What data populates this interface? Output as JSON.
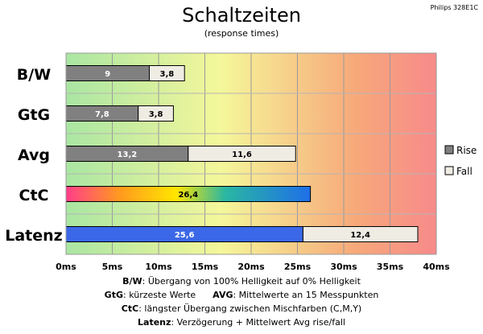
{
  "title": "Schaltzeiten",
  "subtitle": "(response times)",
  "model": "Philips 328E1C",
  "chart_data": {
    "type": "bar",
    "orientation": "horizontal",
    "stacked": true,
    "categories": [
      "B/W",
      "GtG",
      "Avg",
      "CtC",
      "Latenz"
    ],
    "series": [
      {
        "name": "Rise",
        "values": [
          9,
          7.8,
          13.2,
          26.4,
          25.6
        ],
        "labels": [
          "9",
          "7,8",
          "13,2",
          "26,4",
          "25,6"
        ]
      },
      {
        "name": "Fall",
        "values": [
          3.8,
          3.8,
          11.6,
          null,
          12.4
        ],
        "labels": [
          "3,8",
          "3,8",
          "11,6",
          "",
          "12,4"
        ]
      }
    ],
    "xlim": [
      0,
      40
    ],
    "xticks": [
      "0ms",
      "5ms",
      "10ms",
      "15ms",
      "20ms",
      "25ms",
      "30ms",
      "35ms",
      "40ms"
    ],
    "background_gradient": [
      "#a9e6a3",
      "#f5f79a",
      "#f7a97a",
      "#f78a8a"
    ],
    "colors": {
      "Rise": "#808080",
      "Fall": "#efece4",
      "CtC": "gradient",
      "Latenz": "#3b68e8"
    },
    "legend_position": "right",
    "grid": true
  },
  "footnotes": [
    {
      "key": "B/W",
      "text": ":  Übergang von 100% Helligkeit auf 0% Helligkeit"
    },
    {
      "key": "GtG",
      "text": ": kürzeste  Werte",
      "key2": "AVG",
      "text2": ": Mittelwerte  an 15 Messpunkten"
    },
    {
      "key": "CtC",
      "text": ": längster Übergang  zwischen Mischfarben  (C,M,Y)"
    },
    {
      "key": "Latenz",
      "text": ": Verzögerung  + Mittelwert  Avg rise/fall"
    }
  ]
}
